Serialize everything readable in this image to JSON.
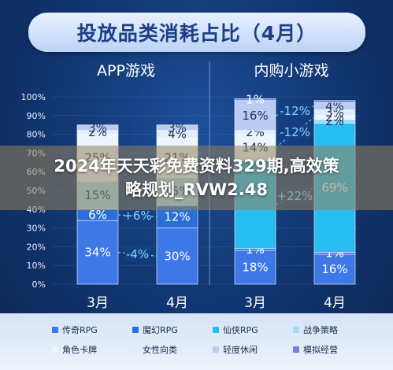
{
  "chart_data": {
    "type": "bar",
    "stacked": true,
    "percent_stacked": true,
    "title": "投放品类消耗占比（4月）",
    "panels": [
      {
        "subtitle": "APP游戏",
        "categories": [
          "3月",
          "4月"
        ],
        "series": [
          {
            "name": "传奇RPG",
            "values": [
              34,
              30
            ],
            "labels": [
              "34%",
              "30%"
            ]
          },
          {
            "name": "魔幻RPG",
            "values": [
              6,
              12
            ],
            "labels": [
              "6%",
              "12%"
            ]
          },
          {
            "name": "仙侠RPG",
            "values": [
              0,
              0
            ],
            "labels": [
              "",
              ""
            ]
          },
          {
            "name": "战争策略",
            "values": [
              15,
              15
            ],
            "labels": [
              "15%",
              "15%"
            ]
          },
          {
            "name": "角色卡牌",
            "values": [
              25,
              21
            ],
            "labels": [
              "25%",
              "21%"
            ]
          },
          {
            "name": "女性向类",
            "values": [
              2,
              4
            ],
            "labels": [
              "2%",
              "4%"
            ]
          },
          {
            "name": "轻度休闲",
            "values": [
              3,
              3
            ],
            "labels": [
              "3%",
              "3%"
            ]
          },
          {
            "name": "模拟经营",
            "values": [
              0,
              0
            ],
            "labels": [
              "",
              ""
            ]
          }
        ],
        "changes": [
          {
            "series": "传奇RPG",
            "label": "-4%"
          },
          {
            "series": "魔幻RPG",
            "label": "+6%"
          }
        ]
      },
      {
        "subtitle": "内购小游戏",
        "categories": [
          "3月",
          "4月"
        ],
        "series": [
          {
            "name": "传奇RPG",
            "values": [
              18,
              16
            ],
            "labels": [
              "18%",
              "16%"
            ]
          },
          {
            "name": "魔幻RPG",
            "values": [
              1,
              1
            ],
            "labels": [
              "1%",
              "1%"
            ]
          },
          {
            "name": "仙侠RPG",
            "values": [
              47,
              69
            ],
            "labels": [
              "",
              "69%"
            ]
          },
          {
            "name": "战争策略",
            "values": [
              0,
              2
            ],
            "labels": [
              "",
              "2%"
            ]
          },
          {
            "name": "角色卡牌",
            "values": [
              14,
              2
            ],
            "labels": [
              "14%",
              "2%"
            ]
          },
          {
            "name": "女性向类",
            "values": [
              2,
              3
            ],
            "labels": [
              "2%",
              "3%"
            ]
          },
          {
            "name": "轻度休闲",
            "values": [
              16,
              4
            ],
            "labels": [
              "16%",
              "4%"
            ]
          },
          {
            "name": "模拟经营",
            "values": [
              1,
              1
            ],
            "labels": [
              "1%",
              ""
            ]
          }
        ],
        "changes": [
          {
            "series": "仙侠RPG",
            "label": "+22%"
          },
          {
            "series": "角色卡牌",
            "label": "-12%"
          },
          {
            "series": "轻度休闲",
            "label": "-12%"
          }
        ]
      }
    ],
    "yaxis": {
      "ticks": [
        "0%",
        "10%",
        "20%",
        "30%",
        "40%",
        "50%",
        "60%",
        "70%",
        "80%",
        "90%",
        "100%"
      ],
      "ylim": [
        0,
        100
      ]
    },
    "legend_position": "bottom",
    "colors": {
      "传奇RPG": "#3d78e6",
      "魔幻RPG": "#2a6fd8",
      "仙侠RPG": "#27bdf2",
      "战争策略": "#9fdcf8",
      "角色卡牌": "#ecf4fd",
      "女性向类": "#e3ecfb",
      "轻度休闲": "#bccbf2",
      "模拟经营": "#6f82e4"
    }
  },
  "legend": [
    {
      "label": "传奇RPG",
      "color": "#3d78e6"
    },
    {
      "label": "魔幻RPG",
      "color": "#2a6fd8"
    },
    {
      "label": "仙侠RPG",
      "color": "#27bdf2"
    },
    {
      "label": "战争策略",
      "color": "#9fdcf8"
    },
    {
      "label": "角色卡牌",
      "color": "#ecf4fd"
    },
    {
      "label": "女性向类",
      "color": "#e3ecfb"
    },
    {
      "label": "轻度休闲",
      "color": "#bccbf2"
    },
    {
      "label": "模拟经营",
      "color": "#6f82e4"
    }
  ],
  "watermark": {
    "line1": "2024年天天彩免费资料329期,高效策",
    "line2": "略规划_RVW2.48"
  }
}
